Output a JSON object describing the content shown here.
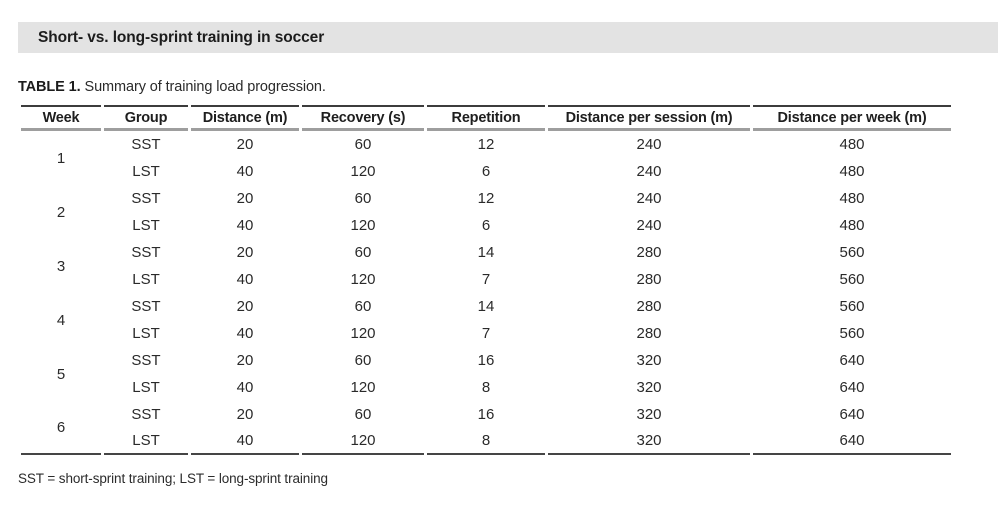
{
  "header": {
    "title": "Short- vs. long-sprint training in soccer"
  },
  "caption": {
    "label": "TABLE 1.",
    "text": "Summary of training load progression."
  },
  "table": {
    "columns": [
      "Week",
      "Group",
      "Distance (m)",
      "Recovery (s)",
      "Repetition",
      "Distance per session (m)",
      "Distance per week (m)"
    ],
    "weeks": [
      {
        "week": "1",
        "rows": [
          {
            "group": "SST",
            "distance": "20",
            "recovery": "60",
            "repetition": "12",
            "per_session": "240",
            "per_week": "480"
          },
          {
            "group": "LST",
            "distance": "40",
            "recovery": "120",
            "repetition": "6",
            "per_session": "240",
            "per_week": "480"
          }
        ]
      },
      {
        "week": "2",
        "rows": [
          {
            "group": "SST",
            "distance": "20",
            "recovery": "60",
            "repetition": "12",
            "per_session": "240",
            "per_week": "480"
          },
          {
            "group": "LST",
            "distance": "40",
            "recovery": "120",
            "repetition": "6",
            "per_session": "240",
            "per_week": "480"
          }
        ]
      },
      {
        "week": "3",
        "rows": [
          {
            "group": "SST",
            "distance": "20",
            "recovery": "60",
            "repetition": "14",
            "per_session": "280",
            "per_week": "560"
          },
          {
            "group": "LST",
            "distance": "40",
            "recovery": "120",
            "repetition": "7",
            "per_session": "280",
            "per_week": "560"
          }
        ]
      },
      {
        "week": "4",
        "rows": [
          {
            "group": "SST",
            "distance": "20",
            "recovery": "60",
            "repetition": "14",
            "per_session": "280",
            "per_week": "560"
          },
          {
            "group": "LST",
            "distance": "40",
            "recovery": "120",
            "repetition": "7",
            "per_session": "280",
            "per_week": "560"
          }
        ]
      },
      {
        "week": "5",
        "rows": [
          {
            "group": "SST",
            "distance": "20",
            "recovery": "60",
            "repetition": "16",
            "per_session": "320",
            "per_week": "640"
          },
          {
            "group": "LST",
            "distance": "40",
            "recovery": "120",
            "repetition": "8",
            "per_session": "320",
            "per_week": "640"
          }
        ]
      },
      {
        "week": "6",
        "rows": [
          {
            "group": "SST",
            "distance": "20",
            "recovery": "60",
            "repetition": "16",
            "per_session": "320",
            "per_week": "640"
          },
          {
            "group": "LST",
            "distance": "40",
            "recovery": "120",
            "repetition": "8",
            "per_session": "320",
            "per_week": "640"
          }
        ]
      }
    ]
  },
  "footnote": "SST = short-sprint training; LST = long-sprint training",
  "colors": {
    "title_bar_bg": "#e3e3e3",
    "text": "#242424",
    "rule_dark": "#3c3c3c",
    "rule_gray": "#9e9e9e"
  }
}
